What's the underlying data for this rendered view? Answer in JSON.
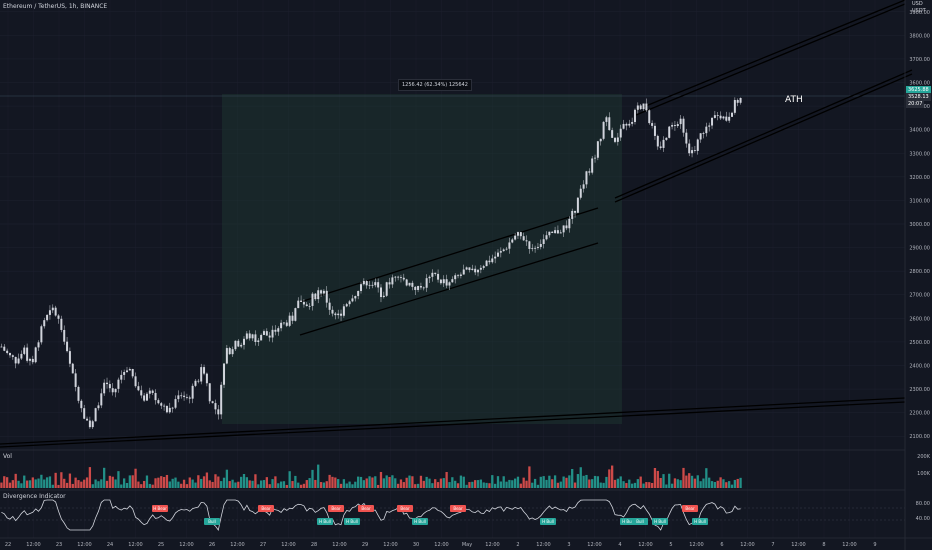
{
  "header": {
    "symbol_line": "Ethereum / TetherUS, 1h, BINANCE",
    "currency_top": "USD",
    "currency_bottom": "USDT"
  },
  "annotations": {
    "ath": "ATH",
    "measure_box": "1256.42 (62.34%) 125642"
  },
  "price_badges": {
    "last": "3528.13",
    "last_sub": "20:07",
    "current_top": "3625.88"
  },
  "panes": {
    "volume_title": "Vol",
    "divergence_title": "Divergence Indicator"
  },
  "chart_data": [
    {
      "type": "candlestick",
      "title": "Ethereum / TetherUS, 1h, BINANCE",
      "x_ticks": [
        "22",
        "12:00",
        "23",
        "12:00",
        "24",
        "12:00",
        "25",
        "12:00",
        "26",
        "12:00",
        "27",
        "12:00",
        "28",
        "12:00",
        "29",
        "12:00",
        "30",
        "12:00",
        "May",
        "12:00",
        "2",
        "12:00",
        "3",
        "12:00",
        "4",
        "12:00",
        "5",
        "12:00",
        "6",
        "12:00",
        "7",
        "12:00",
        "8",
        "12:00",
        "9"
      ],
      "y_ticks": [
        2100,
        2200,
        2300,
        2400,
        2500,
        2600,
        2700,
        2800,
        2900,
        3000,
        3100,
        3200,
        3300,
        3400,
        3500,
        3600,
        3700,
        3800,
        3900
      ],
      "ylim": [
        2050,
        3950
      ],
      "grid": true,
      "path_close": [
        2480,
        2440,
        2420,
        2460,
        2400,
        2520,
        2600,
        2640,
        2560,
        2420,
        2300,
        2200,
        2130,
        2250,
        2330,
        2280,
        2360,
        2400,
        2320,
        2260,
        2300,
        2250,
        2200,
        2230,
        2280,
        2260,
        2320,
        2400,
        2250,
        2200,
        2450,
        2480,
        2500,
        2530,
        2510,
        2540,
        2520,
        2560,
        2580,
        2600,
        2680,
        2660,
        2700,
        2720,
        2640,
        2600,
        2660,
        2700,
        2720,
        2760,
        2740,
        2700,
        2760,
        2800,
        2760,
        2740,
        2720,
        2760,
        2780,
        2760,
        2750,
        2770,
        2800,
        2790,
        2820,
        2840,
        2860,
        2880,
        2920,
        2950,
        2940,
        2900,
        2920,
        2940,
        2960,
        2980,
        3000,
        3080,
        3180,
        3250,
        3350,
        3450,
        3320,
        3420,
        3400,
        3480,
        3520,
        3420,
        3300,
        3380,
        3420,
        3460,
        3300,
        3330,
        3400,
        3420,
        3480,
        3440,
        3500,
        3528
      ]
    },
    {
      "type": "bar",
      "title": "Vol",
      "y_ticks": [
        "200K",
        "100K"
      ]
    },
    {
      "type": "line",
      "title": "Divergence Indicator",
      "y_ticks": [
        80.0,
        40.0
      ],
      "signals": [
        {
          "label": "H Bear",
          "kind": "bear"
        },
        {
          "label": "Bull",
          "kind": "bull"
        },
        {
          "label": "Bear",
          "kind": "bear"
        },
        {
          "label": "H Bull",
          "kind": "bull"
        },
        {
          "label": "Bear",
          "kind": "bear"
        },
        {
          "label": "H Bull",
          "kind": "bull"
        },
        {
          "label": "Bear",
          "kind": "bear"
        },
        {
          "label": "Bear",
          "kind": "bear"
        },
        {
          "label": "H Bull",
          "kind": "bull"
        },
        {
          "label": "Bear",
          "kind": "bear"
        },
        {
          "label": "H Bull",
          "kind": "bull"
        },
        {
          "label": "H Bull",
          "kind": "bull"
        },
        {
          "label": "H Bull",
          "kind": "bull"
        },
        {
          "label": "Bear",
          "kind": "bear"
        },
        {
          "label": "H Bull",
          "kind": "bull"
        },
        {
          "label": "Bull",
          "kind": "bull"
        },
        {
          "label": "H Bull",
          "kind": "bull"
        }
      ]
    }
  ],
  "colors": {
    "background": "#131722",
    "bull": "#26a69a",
    "bear": "#ef5350",
    "measure_fill": "#1e3a33",
    "grid": "#1e2230"
  }
}
